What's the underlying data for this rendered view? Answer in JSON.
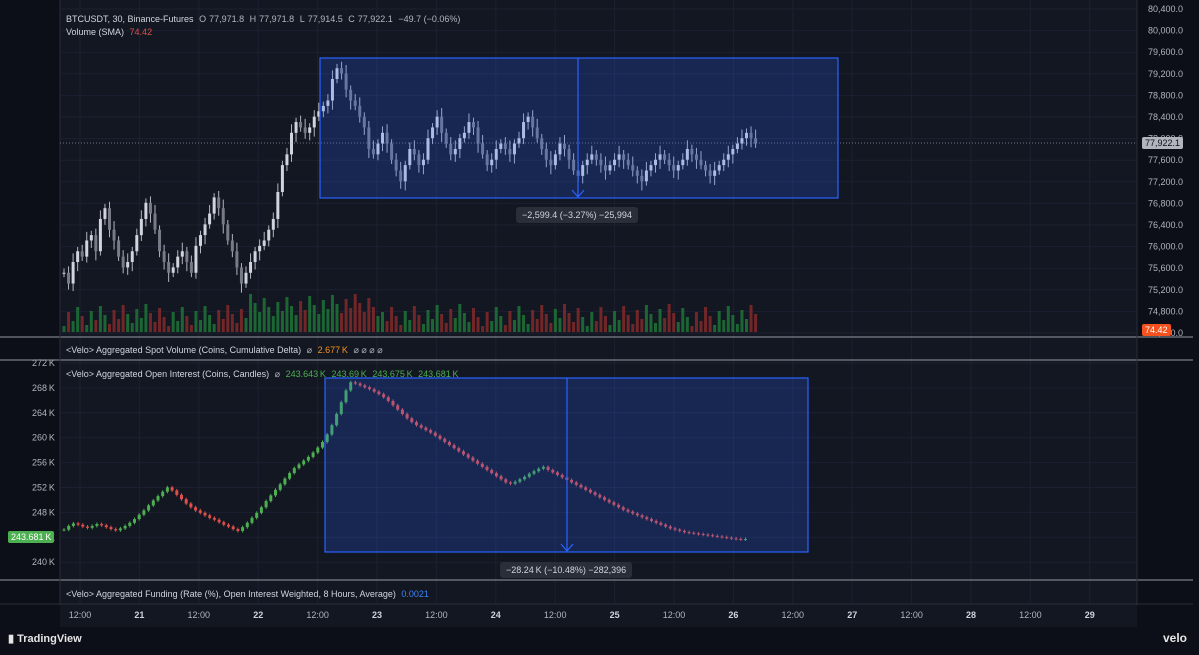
{
  "header": {
    "symbol": "BTCUSDT, 30, Binance-Futures",
    "o_label": "O",
    "o_val": "77,971.8",
    "h_label": "H",
    "h_val": "77,971.8",
    "l_label": "L",
    "l_val": "77,914.5",
    "c_label": "C",
    "c_val": "77,922.1",
    "change": "−49.7 (−0.06%)",
    "volume_label": "Volume (SMA)",
    "volume_val": "74.42"
  },
  "indicators": {
    "spot_volume_label": "<Velo> Aggregated Spot Volume (Coins, Cumulative Delta)",
    "spot_volume_val": "2.677 K",
    "spot_volume_dots": "⌀ ⌀ ⌀ ⌀",
    "oi_label": "<Velo> Aggregated Open Interest (Coins, Candles)",
    "oi_vals": [
      "243.643 K",
      "243.69 K",
      "243.675 K",
      "243.681 K"
    ],
    "funding_label": "<Velo> Aggregated Funding (Rate (%), Open Interest Weighted, 8 Hours, Average)",
    "funding_val": "0.0021",
    "null_mark": "⌀"
  },
  "price_axis": [
    "80,400.0",
    "80,000.0",
    "79,600.0",
    "79,200.0",
    "78,800.0",
    "78,400.0",
    "78,000.0",
    "77,600.0",
    "77,200.0",
    "76,800.0",
    "76,400.0",
    "76,000.0",
    "75,600.0",
    "75,200.0",
    "74,800.0",
    "74,400.0"
  ],
  "oi_axis": [
    "272 K",
    "268 K",
    "264 K",
    "260 K",
    "256 K",
    "252 K",
    "248 K",
    "244 K",
    "240 K"
  ],
  "time_axis": [
    "12:00",
    "21",
    "12:00",
    "22",
    "12:00",
    "23",
    "12:00",
    "24",
    "12:00",
    "25",
    "12:00",
    "26",
    "12:00",
    "27",
    "12:00",
    "28",
    "12:00",
    "29"
  ],
  "price_tag": "77,922.1",
  "volume_tag": "74.42",
  "oi_tag": "243.681 K",
  "measure_price": "−2,599.4 (−3.27%) −25,994",
  "measure_oi": "−28.24 K (−10.48%) −282,396",
  "brand": {
    "tradingview": "TradingView",
    "velo": "velo"
  },
  "colors": {
    "up": "#4caf50",
    "down": "#e0504a",
    "box": "#2962ff",
    "candle": "#b2b5be",
    "volume_up": "#1f7a3a",
    "volume_down": "#8a2a2a",
    "accent": "#f7931a"
  },
  "chart_data": [
    {
      "type": "candlestick",
      "title": "BTCUSDT, 30, Binance-Futures",
      "x_range": [
        "12:00",
        "29"
      ],
      "ylim": [
        74400,
        80400
      ],
      "series_close": [
        75500,
        75300,
        75700,
        75900,
        75800,
        76100,
        76200,
        75900,
        76500,
        76700,
        76300,
        76100,
        75800,
        75600,
        75700,
        75900,
        76200,
        76500,
        76800,
        76600,
        76300,
        75900,
        75700,
        75500,
        75600,
        75800,
        75900,
        75700,
        75500,
        76000,
        76200,
        76400,
        76600,
        76900,
        76700,
        76400,
        76100,
        75900,
        75600,
        75300,
        75500,
        75700,
        75900,
        76000,
        76100,
        76300,
        76500,
        77000,
        77500,
        77700,
        78100,
        78300,
        78200,
        78100,
        78200,
        78400,
        78500,
        78600,
        78700,
        79100,
        79300,
        79200,
        78900,
        78700,
        78600,
        78400,
        78200,
        77800,
        77700,
        77900,
        78100,
        77900,
        77600,
        77400,
        77200,
        77500,
        77800,
        77700,
        77500,
        77600,
        78000,
        78200,
        78400,
        78100,
        77900,
        77700,
        77800,
        78000,
        78100,
        78300,
        78200,
        77900,
        77700,
        77500,
        77600,
        77800,
        77900,
        77800,
        77700,
        77900,
        78000,
        78300,
        78400,
        78200,
        78000,
        77800,
        77600,
        77500,
        77700,
        77900,
        77800,
        77600,
        77400,
        77300,
        77500,
        77600,
        77700,
        77600,
        77500,
        77400,
        77500,
        77600,
        77700,
        77600,
        77500,
        77400,
        77300,
        77200,
        77400,
        77500,
        77600,
        77700,
        77600,
        77500,
        77400,
        77500,
        77600,
        77800,
        77700,
        77600,
        77500,
        77400,
        77300,
        77400,
        77500,
        77600,
        77700,
        77800,
        77900,
        78000,
        78100,
        78000,
        77900
      ]
    },
    {
      "type": "candlestick",
      "title": "<Velo> Aggregated Open Interest (Coins, Candles)",
      "ylim": [
        240000,
        272000
      ],
      "series_close": [
        245200,
        245800,
        246200,
        246000,
        245700,
        245500,
        245800,
        246100,
        245900,
        245600,
        245300,
        245100,
        245400,
        245800,
        246300,
        246900,
        247600,
        248300,
        249100,
        249900,
        250600,
        251300,
        252000,
        251500,
        250800,
        250100,
        249400,
        248800,
        248300,
        247900,
        247500,
        247100,
        246800,
        246400,
        246000,
        245700,
        245300,
        245000,
        245600,
        246300,
        247100,
        247900,
        248800,
        249800,
        250700,
        251600,
        252500,
        253400,
        254300,
        255100,
        255700,
        256300,
        256900,
        257600,
        258400,
        259300,
        260500,
        262000,
        263800,
        265700,
        267600,
        268900,
        268700,
        268400,
        268100,
        267800,
        267400,
        267000,
        266500,
        265900,
        265200,
        264500,
        263800,
        263100,
        262500,
        262000,
        261600,
        261200,
        260800,
        260300,
        259800,
        259300,
        258800,
        258300,
        257800,
        257300,
        256800,
        256300,
        255800,
        255300,
        254800,
        254300,
        253800,
        253300,
        252800,
        252600,
        252900,
        253300,
        253700,
        254200,
        254600,
        255000,
        255300,
        254800,
        254400,
        254000,
        253600,
        253200,
        252800,
        252400,
        252000,
        251600,
        251200,
        250800,
        250400,
        250000,
        249600,
        249200,
        248800,
        248400,
        248100,
        247800,
        247500,
        247200,
        246900,
        246600,
        246300,
        246000,
        245700,
        245400,
        245200,
        245000,
        244800,
        244700,
        244600,
        244500,
        244400,
        244300,
        244200,
        244100,
        244000,
        243900,
        243800,
        243700,
        243650,
        243681
      ]
    }
  ]
}
